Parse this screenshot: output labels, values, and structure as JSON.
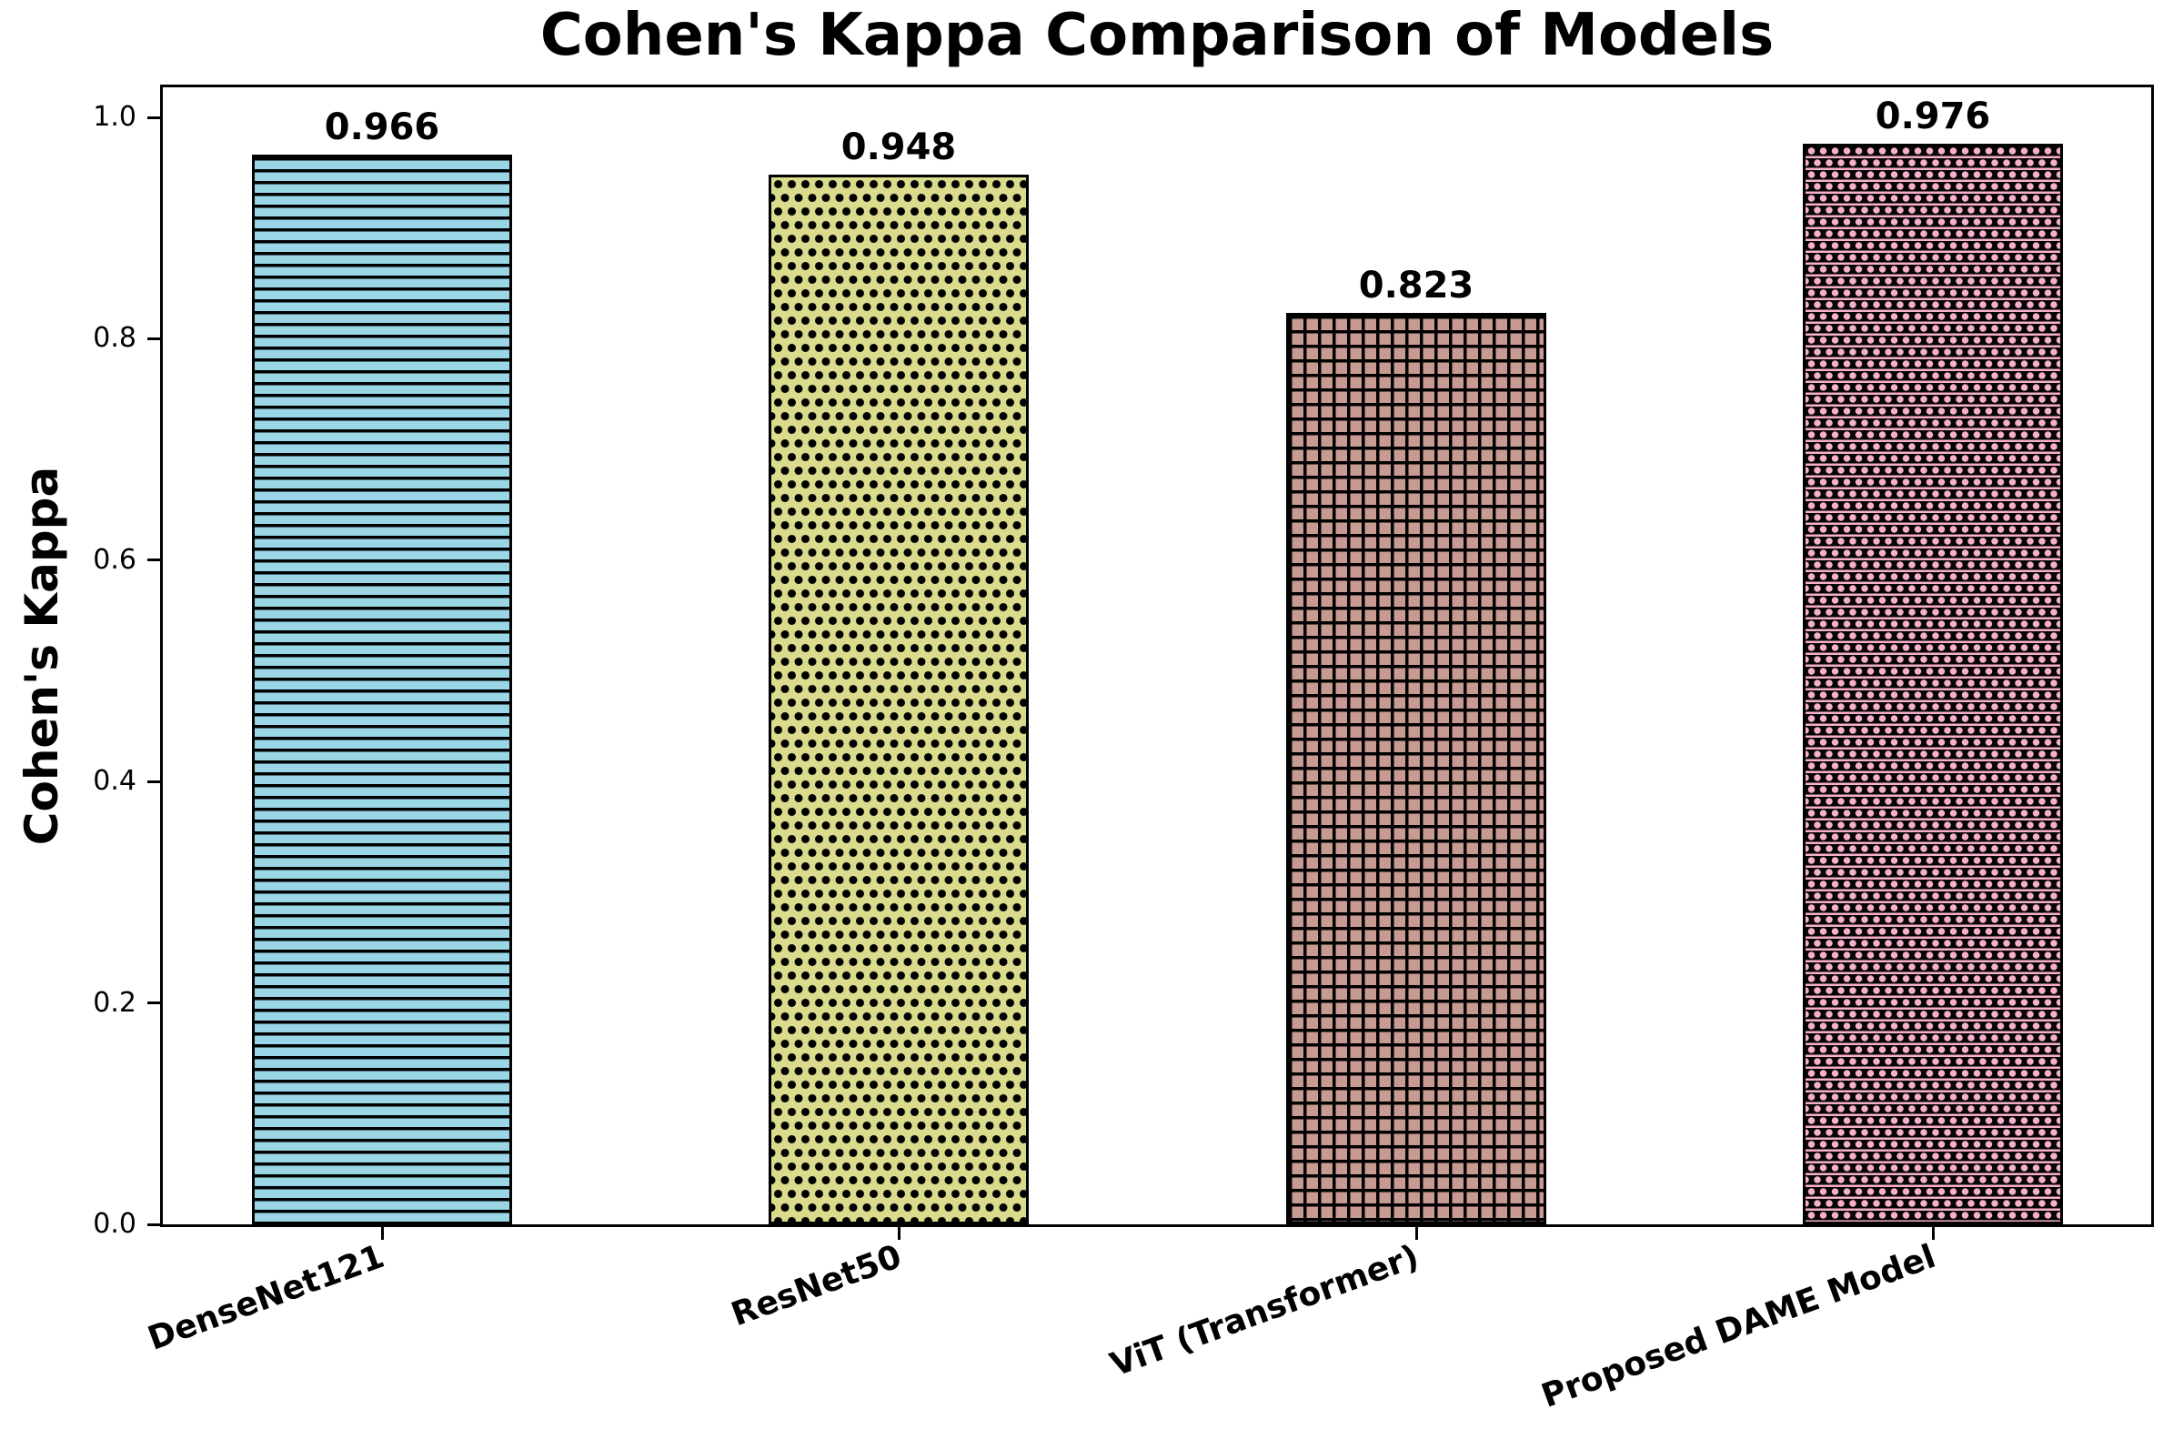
{
  "chart_data": {
    "type": "bar",
    "title": "Cohen's Kappa Comparison of Models",
    "xlabel": "",
    "ylabel": "Cohen's Kappa",
    "categories": [
      "DenseNet121",
      "ResNet50",
      "ViT (Transformer)",
      "Proposed DAME Model"
    ],
    "values": [
      0.966,
      0.948,
      0.823,
      0.976
    ],
    "value_labels": [
      "0.966",
      "0.948",
      "0.823",
      "0.976"
    ],
    "bar_colors": [
      "#9ad6e6",
      "#dbdb8d",
      "#c79a92",
      "#f7afcb"
    ],
    "bar_edge_color": "#000000",
    "hatches": [
      "horizontal-lines",
      "dots",
      "grid",
      "stars"
    ],
    "yticks": [
      "0.0",
      "0.2",
      "0.4",
      "0.6",
      "0.8",
      "1.0"
    ],
    "ylim": [
      0.0,
      1.03
    ],
    "grid": false,
    "legend": null
  }
}
